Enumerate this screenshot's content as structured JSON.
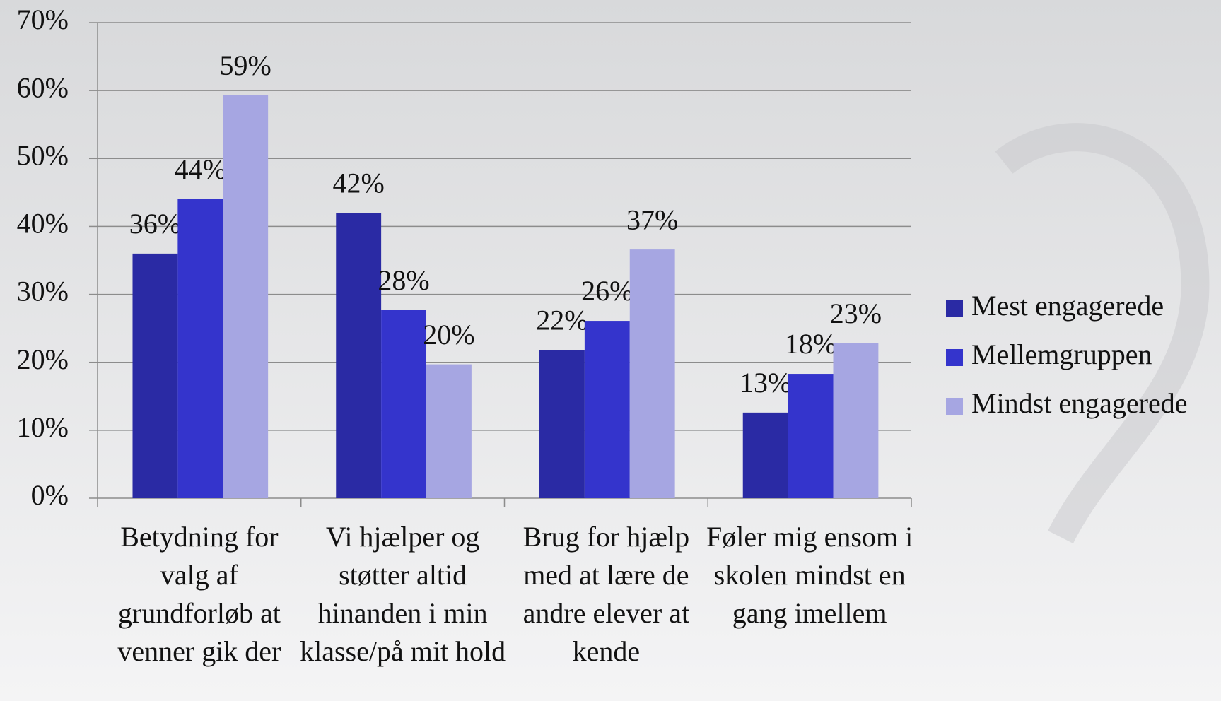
{
  "chart_data": {
    "type": "bar",
    "categories": [
      "Betydning for valg af grundforløb at venner gik der",
      "Vi hjælper og støtter altid hinanden i min klasse/på mit hold",
      "Brug for hjælp med at lære de andre elever at kende",
      "Føler mig ensom i skolen mindst en gang imellem"
    ],
    "series": [
      {
        "name": "Mest engagerede",
        "color": "#2a2aa4",
        "values": [
          36,
          42,
          21.8,
          12.6
        ],
        "value_labels": [
          "36%",
          "42%",
          "22%",
          "13%"
        ]
      },
      {
        "name": "Mellemgruppen",
        "color": "#3434cc",
        "values": [
          44,
          27.7,
          26.1,
          18.3
        ],
        "value_labels": [
          "44%",
          "28%",
          "26%",
          "18%"
        ]
      },
      {
        "name": "Mindst engagerede",
        "color": "#a6a6e2",
        "values": [
          59.3,
          19.7,
          36.6,
          22.8
        ],
        "value_labels": [
          "59%",
          "20%",
          "37%",
          "23%"
        ]
      }
    ],
    "ylim": [
      0,
      70
    ],
    "yticks": [
      {
        "value": 0,
        "label": "0%"
      },
      {
        "value": 10,
        "label": "10%"
      },
      {
        "value": 20,
        "label": "20%"
      },
      {
        "value": 30,
        "label": "30%"
      },
      {
        "value": 40,
        "label": "40%"
      },
      {
        "value": 50,
        "label": "50%"
      },
      {
        "value": 60,
        "label": "60%"
      },
      {
        "value": 70,
        "label": "70%"
      }
    ],
    "grid": true,
    "legend": "right"
  }
}
